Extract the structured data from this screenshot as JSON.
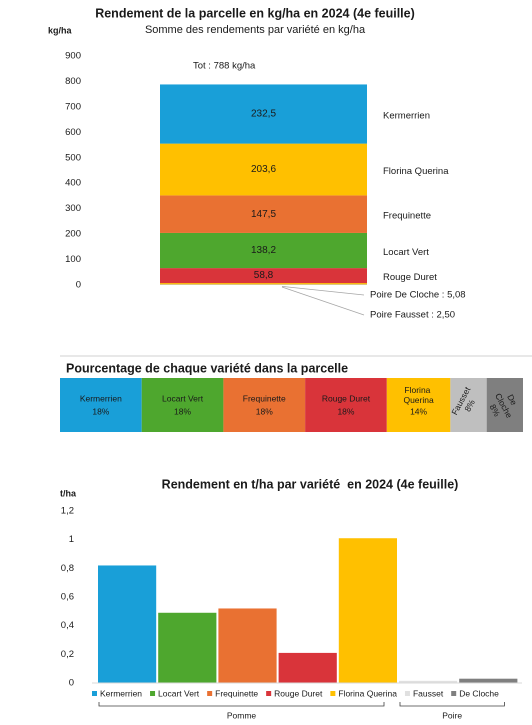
{
  "chart_data": [
    {
      "type": "stacked",
      "title": "Rendement de la parcelle en kg/ha en 2024 (4e feuille)",
      "subtitle": "Somme des rendements par variété en kg/ha",
      "ylabel": "kg/ha",
      "annotation": "Tot : 788 kg/ha",
      "ylim": [
        0,
        900
      ],
      "yticks": [
        0,
        100,
        200,
        300,
        400,
        500,
        600,
        700,
        800,
        900
      ],
      "series": [
        {
          "name": "Poire Fausset : 2,50",
          "color": "#bfbfbf",
          "values": [
            2.5
          ]
        },
        {
          "name": "Poire De Cloche : 5,08",
          "color": "#ffc000",
          "values": [
            5.08
          ]
        },
        {
          "name": "Rouge Duret",
          "color": "#d9343a",
          "values": [
            58.8
          ],
          "value_labels": [
            "58,8"
          ]
        },
        {
          "name": "Locart Vert",
          "color": "#4ea72e",
          "values": [
            138.2
          ],
          "value_labels": [
            "138,2"
          ]
        },
        {
          "name": "Frequinette",
          "color": "#e97132",
          "values": [
            147.5
          ],
          "value_labels": [
            "147,5"
          ]
        },
        {
          "name": "Florina Querina",
          "color": "#ffc000",
          "values": [
            203.6
          ],
          "value_labels": [
            "203,6"
          ]
        },
        {
          "name": "Kermerrien",
          "color": "#199fd8",
          "values": [
            232.5
          ],
          "value_labels": [
            "232,5"
          ]
        }
      ]
    },
    {
      "type": "strip",
      "title": "Pourcentage de chaque variété dans la parcelle",
      "categories": [
        "Kermerrien",
        "Locart Vert",
        "Frequinette",
        "Rouge Duret",
        "Florina Querina",
        "Fausset",
        "De Cloche"
      ],
      "values": [
        18,
        18,
        18,
        18,
        14,
        8,
        8
      ],
      "value_labels": [
        "18%",
        "18%",
        "18%",
        "18%",
        "14%",
        "8%",
        "8%"
      ],
      "colors": [
        "#199fd8",
        "#4ea72e",
        "#e97132",
        "#d9343a",
        "#ffc000",
        "#bfbfbf",
        "#7f7f7f"
      ]
    },
    {
      "type": "bar",
      "title": "Rendement en t/ha par variété  en 2024 (4e feuille)",
      "ylabel": "t/ha",
      "categories": [
        "Kermerrien",
        "Locart Vert",
        "Frequinette",
        "Rouge Duret",
        "Florina Querina",
        "Fausset",
        "De Cloche"
      ],
      "values": [
        0.82,
        0.49,
        0.52,
        0.21,
        1.01,
        0.015,
        0.03
      ],
      "colors": [
        "#199fd8",
        "#4ea72e",
        "#e97132",
        "#d9343a",
        "#ffc000",
        "#e0e0e0",
        "#7f7f7f"
      ],
      "ylim": [
        0,
        1.2
      ],
      "yticks": [
        0,
        {
          "value": 0.2,
          "label": "0,2"
        },
        {
          "value": 0.4,
          "label": "0,4"
        },
        {
          "value": 0.6,
          "label": "0,6"
        },
        {
          "value": 0.8,
          "label": "0,8"
        },
        1,
        {
          "value": 1.2,
          "label": "1,2"
        }
      ],
      "legend": true,
      "groups": [
        {
          "name": "Pomme",
          "categories": [
            "Kermerrien",
            "Locart Vert",
            "Frequinette",
            "Rouge Duret",
            "Florina Querina"
          ]
        },
        {
          "name": "Poire",
          "categories": [
            "Fausset",
            "De Cloche"
          ]
        }
      ]
    }
  ]
}
